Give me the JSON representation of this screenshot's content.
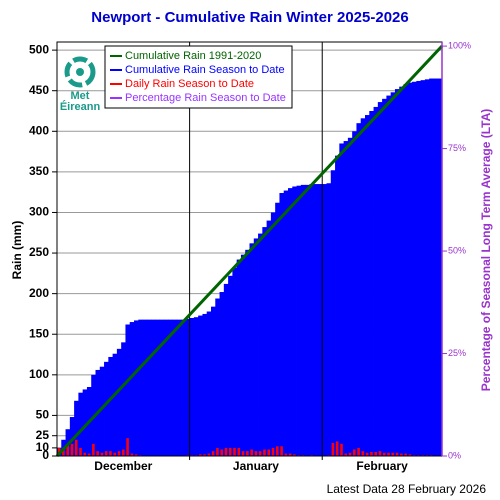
{
  "chart_data": {
    "type": "cumulative-rain",
    "title": "Newport - Cumulative Rain Winter 2025-2026",
    "ylabel": "Rain (mm)",
    "y2label": "Percentage  of Seasonal Long Term Average (LTA)",
    "footer": "Latest Data 28 February 2026",
    "logo": [
      "Met",
      "Éireann"
    ],
    "months": [
      {
        "label": "December",
        "days": 31
      },
      {
        "label": "January",
        "days": 31
      },
      {
        "label": "February",
        "days": 28
      }
    ],
    "ylim": [
      0,
      510
    ],
    "yticks": [
      0,
      10,
      25,
      50,
      100,
      150,
      200,
      250,
      300,
      350,
      400,
      450,
      500
    ],
    "y2lim": [
      0,
      101
    ],
    "y2ticks": [
      {
        "value": 0,
        "label": "0%"
      },
      {
        "value": 25,
        "label": "25%"
      },
      {
        "value": 50,
        "label": "50%"
      },
      {
        "value": 75,
        "label": "75%"
      },
      {
        "value": 100,
        "label": "100%"
      }
    ],
    "grid": true,
    "series": [
      {
        "name": "Cumulative Rain 1991-2020",
        "color": "#006400",
        "x": [
          0,
          90
        ],
        "values": [
          0,
          505
        ]
      },
      {
        "name": "Cumulative Rain Season to Date",
        "color": "#0000ff",
        "values": [
          10,
          20,
          33,
          48,
          68,
          78,
          82,
          85,
          100,
          106,
          110,
          116,
          122,
          126,
          132,
          140,
          162,
          165,
          167,
          168,
          168,
          168,
          168,
          168,
          168,
          168,
          168,
          168,
          168,
          168,
          169,
          170,
          171,
          173,
          175,
          178,
          184,
          194,
          202,
          212,
          222,
          232,
          242,
          248,
          254,
          262,
          268,
          274,
          282,
          290,
          300,
          312,
          324,
          327,
          330,
          332,
          333,
          334,
          334,
          335,
          335,
          335,
          335,
          336,
          352,
          370,
          385,
          388,
          392,
          400,
          410,
          416,
          420,
          425,
          430,
          436,
          440,
          444,
          448,
          452,
          455,
          458,
          460,
          461,
          462,
          463,
          464,
          465,
          465,
          465
        ]
      },
      {
        "name": "Daily Rain Season to Date",
        "color": "#ff0000",
        "values": [
          10,
          10,
          13,
          15,
          20,
          10,
          4,
          3,
          15,
          6,
          4,
          6,
          6,
          4,
          6,
          8,
          22,
          3,
          2,
          1,
          0,
          0,
          0,
          0,
          0,
          0,
          0,
          0,
          0,
          0,
          1,
          1,
          1,
          2,
          2,
          3,
          6,
          10,
          8,
          10,
          10,
          10,
          10,
          6,
          6,
          8,
          6,
          6,
          8,
          8,
          10,
          12,
          12,
          3,
          3,
          2,
          1,
          1,
          0,
          1,
          0,
          0,
          0,
          1,
          16,
          18,
          15,
          3,
          4,
          8,
          10,
          6,
          4,
          5,
          5,
          6,
          4,
          4,
          4,
          4,
          3,
          3,
          2,
          1,
          1,
          1,
          1,
          1,
          0,
          0
        ]
      },
      {
        "name": "Percentage Rain Season to Date",
        "color": "#9933ff"
      }
    ]
  }
}
